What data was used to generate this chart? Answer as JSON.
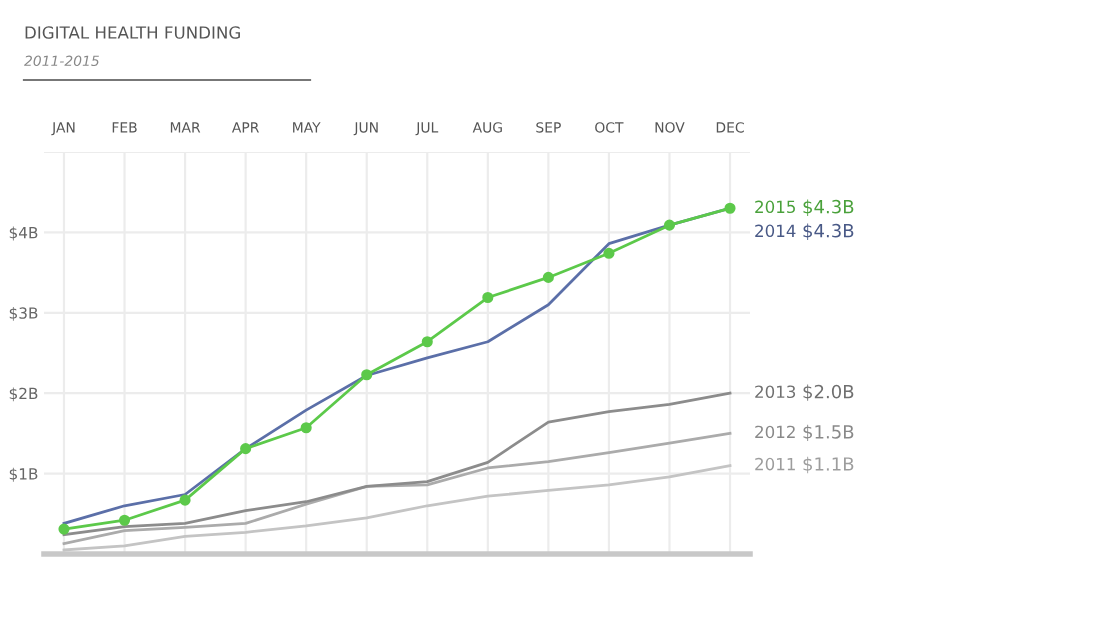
{
  "chart_data": {
    "type": "line",
    "title": "DIGITAL HEALTH FUNDING",
    "subtitle": "2011-2015",
    "categories": [
      "JAN",
      "FEB",
      "MAR",
      "APR",
      "MAY",
      "JUN",
      "JUL",
      "AUG",
      "SEP",
      "OCT",
      "NOV",
      "DEC"
    ],
    "series": [
      {
        "name": "2015",
        "color": "#5cc94a",
        "marker": "circle",
        "values": [
          0.31,
          0.42,
          0.67,
          1.31,
          1.57,
          2.23,
          2.64,
          3.19,
          3.44,
          3.74,
          4.09,
          4.3
        ]
      },
      {
        "name": "2014",
        "color": "#5b6fa8",
        "marker": "none",
        "values": [
          0.38,
          0.6,
          0.74,
          1.31,
          1.79,
          2.22,
          2.44,
          2.64,
          3.1,
          3.86,
          4.09,
          4.3
        ]
      },
      {
        "name": "2013",
        "color": "#8c8c8c",
        "marker": "none",
        "values": [
          0.24,
          0.34,
          0.38,
          0.54,
          0.65,
          0.84,
          0.9,
          1.14,
          1.64,
          1.77,
          1.86,
          2.0
        ]
      },
      {
        "name": "2012",
        "color": "#ababab",
        "marker": "none",
        "values": [
          0.13,
          0.29,
          0.33,
          0.38,
          0.62,
          0.84,
          0.86,
          1.07,
          1.15,
          1.26,
          1.38,
          1.5
        ]
      },
      {
        "name": "2011",
        "color": "#c4c4c4",
        "marker": "none",
        "values": [
          0.05,
          0.1,
          0.22,
          0.27,
          0.35,
          0.45,
          0.6,
          0.72,
          0.79,
          0.86,
          0.96,
          1.1
        ]
      }
    ],
    "annotations": [
      "$4.3B",
      "$4.3B",
      "$2.0B",
      "$1.5B",
      "$1.1B"
    ],
    "ylim": [
      0,
      5
    ],
    "yticks": [
      {
        "value": 1,
        "label": "$1B"
      },
      {
        "value": 2,
        "label": "$2B"
      },
      {
        "value": 3,
        "label": "$3B"
      },
      {
        "value": 4,
        "label": "$4B"
      },
      {
        "value": 5,
        "label": null
      }
    ],
    "grid": true,
    "line_style": "solid"
  }
}
